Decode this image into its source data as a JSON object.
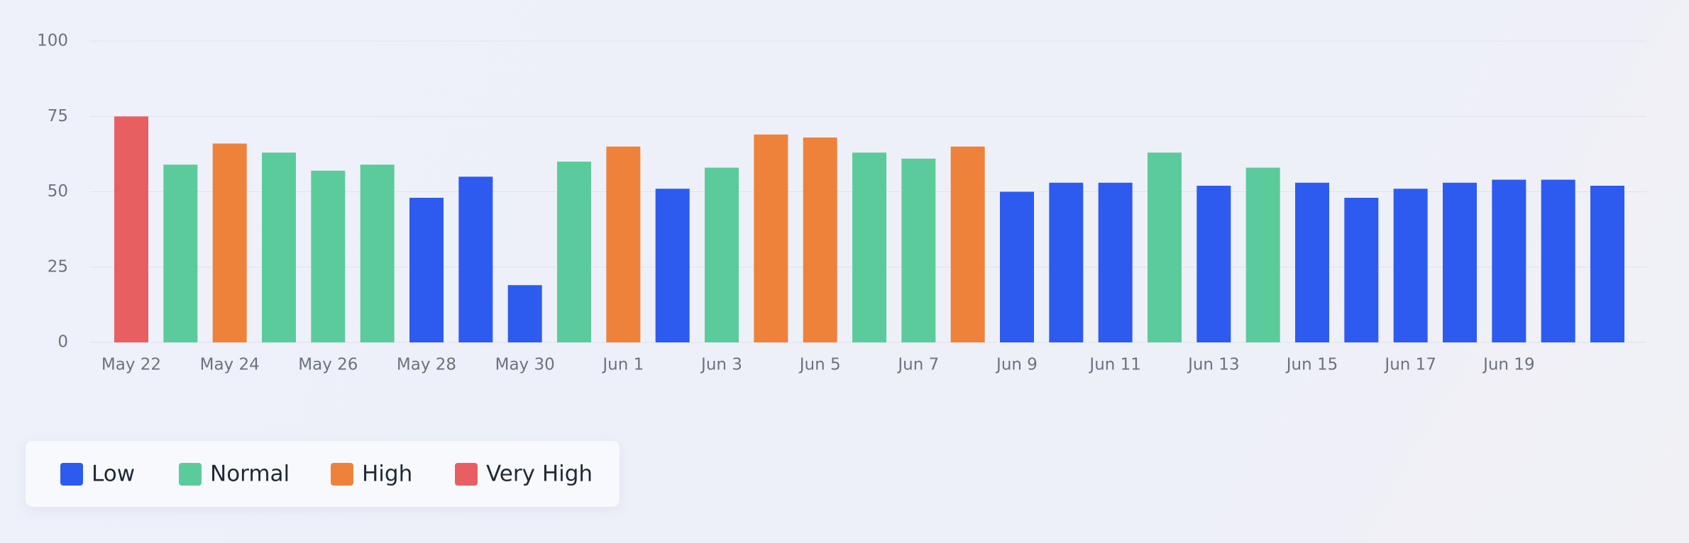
{
  "chart_data": {
    "type": "bar",
    "categories": [
      "May 22",
      null,
      "May 24",
      null,
      "May 26",
      null,
      "May 28",
      null,
      "May 30",
      null,
      "Jun 1",
      null,
      "Jun 3",
      null,
      "Jun 5",
      null,
      "Jun 7",
      null,
      "Jun 9",
      null,
      "Jun 11",
      null,
      "Jun 13",
      null,
      "Jun 15",
      null,
      "Jun 17",
      null,
      "Jun 19",
      null,
      null
    ],
    "series": [
      {
        "name": "Low",
        "color": "#2d5bf0",
        "values": [
          null,
          null,
          null,
          null,
          null,
          null,
          48,
          55,
          19,
          null,
          null,
          51,
          null,
          null,
          null,
          null,
          null,
          null,
          50,
          53,
          53,
          null,
          52,
          null,
          53,
          48,
          51,
          53,
          54,
          54,
          52
        ]
      },
      {
        "name": "Normal",
        "color": "#5ccb9b",
        "values": [
          null,
          59,
          null,
          63,
          57,
          59,
          null,
          null,
          null,
          60,
          null,
          null,
          58,
          null,
          null,
          63,
          61,
          null,
          null,
          null,
          null,
          63,
          null,
          58,
          null,
          null,
          null,
          null,
          null,
          null,
          null
        ]
      },
      {
        "name": "High",
        "color": "#ee823a",
        "values": [
          null,
          null,
          66,
          null,
          null,
          null,
          null,
          null,
          null,
          null,
          65,
          null,
          null,
          69,
          68,
          null,
          null,
          65,
          null,
          null,
          null,
          null,
          null,
          null,
          null,
          null,
          null,
          null,
          null,
          null,
          null
        ]
      },
      {
        "name": "Very High",
        "color": "#e85f62",
        "values": [
          75,
          null,
          null,
          null,
          null,
          null,
          null,
          null,
          null,
          null,
          null,
          null,
          null,
          null,
          null,
          null,
          null,
          null,
          null,
          null,
          null,
          null,
          null,
          null,
          null,
          null,
          null,
          null,
          null,
          null,
          null
        ]
      }
    ],
    "ylim": [
      0,
      100
    ],
    "yticks": [
      0,
      25,
      50,
      75,
      100
    ],
    "grid": true
  }
}
